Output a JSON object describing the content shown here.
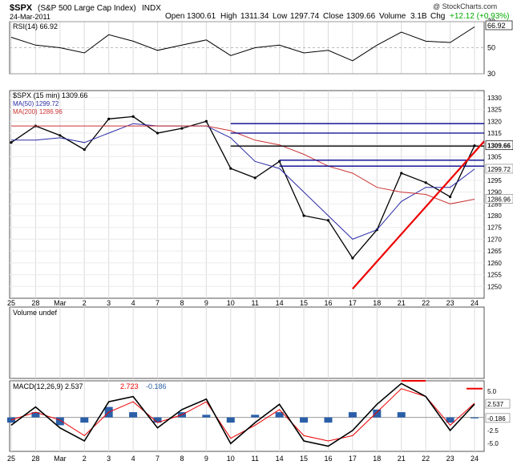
{
  "header": {
    "symbol": "$SPX",
    "name": "(S&P 500 Large Cap Index)",
    "exchange": "INDX",
    "date": "24-Mar-2011",
    "watermark": "@ StockCharts.com",
    "stats": [
      {
        "label": "Open",
        "value": "1300.61"
      },
      {
        "label": "High",
        "value": "1311.34"
      },
      {
        "label": "Low",
        "value": "1297.74"
      },
      {
        "label": "Close",
        "value": "1309.66"
      },
      {
        "label": "Volume",
        "value": "3.1B"
      },
      {
        "label": "Chg",
        "value": "+12.12 (+0.93%)"
      }
    ],
    "chg_color": "#00aa00"
  },
  "x_ticks": [
    "25",
    "28",
    "Mar",
    "2",
    "3",
    "4",
    "7",
    "8",
    "9",
    "10",
    "11",
    "14",
    "15",
    "16",
    "17",
    "18",
    "21",
    "22",
    "23",
    "24"
  ],
  "chart_data": [
    {
      "type": "line",
      "panel": "rsi",
      "legend": "RSI(14) 66.92",
      "current_label": "66.92",
      "ylim": [
        30,
        70
      ],
      "y_ticks": [
        70,
        50,
        30
      ],
      "reference_lines": [
        70,
        30
      ],
      "x": [
        "25",
        "28",
        "Mar",
        "2",
        "3",
        "4",
        "7",
        "8",
        "9",
        "10",
        "11",
        "14",
        "15",
        "16",
        "17",
        "18",
        "21",
        "22",
        "23",
        "24"
      ],
      "series": [
        {
          "values": [
            58,
            52,
            50,
            46,
            60,
            55,
            48,
            52,
            56,
            44,
            50,
            52,
            46,
            48,
            40,
            52,
            62,
            55,
            54,
            66
          ]
        }
      ]
    },
    {
      "type": "line",
      "panel": "price",
      "legend": [
        "$SPX (15 min) 1309.66",
        "MA(50) 1299.72",
        "MA(200) 1286.96"
      ],
      "ylim": [
        1245,
        1333
      ],
      "y_ticks": [
        1250,
        1255,
        1260,
        1265,
        1270,
        1275,
        1280,
        1285,
        1290,
        1295,
        1300,
        1305,
        1310,
        1315,
        1320,
        1325,
        1330
      ],
      "right_labels": [
        {
          "text": "1309.66",
          "value": 1309.66
        },
        {
          "text": "1299.72",
          "value": 1299.72
        },
        {
          "text": "1286.96",
          "value": 1286.96
        }
      ],
      "x": [
        "25",
        "28",
        "Mar",
        "2",
        "3",
        "4",
        "7",
        "8",
        "9",
        "10",
        "11",
        "14",
        "15",
        "16",
        "17",
        "18",
        "21",
        "22",
        "23",
        "24"
      ],
      "series": [
        {
          "name": "$SPX (15 min)",
          "color": "#000000",
          "values": [
            1311,
            1318,
            1314,
            1308,
            1321,
            1322,
            1315,
            1317,
            1320,
            1300,
            1296,
            1303,
            1280,
            1278,
            1262,
            1274,
            1298,
            1294,
            1288,
            1309.66
          ]
        },
        {
          "name": "MA(50)",
          "color": "#2b2ba6",
          "values": [
            1312,
            1312,
            1313,
            1311,
            1315,
            1319,
            1318,
            1318,
            1318,
            1313,
            1303,
            1300,
            1290,
            1280,
            1270,
            1274,
            1286,
            1292,
            1292,
            1299.72
          ]
        },
        {
          "name": "MA(200)",
          "color": "#cc3333",
          "values": [
            1318,
            1318,
            1318,
            1318,
            1318,
            1318,
            1318,
            1318,
            1318,
            1316,
            1312,
            1310,
            1306,
            1301,
            1298,
            1292,
            1290,
            1289,
            1285,
            1286.96
          ]
        }
      ],
      "annotations": [
        {
          "kind": "horizontal_line",
          "value": 1319,
          "color": "#00008b"
        },
        {
          "kind": "horizontal_line",
          "value": 1315,
          "color": "#00008b"
        },
        {
          "kind": "horizontal_line",
          "value": 1309.5,
          "color": "#000000"
        },
        {
          "kind": "horizontal_line",
          "value": 1303.5,
          "color": "#00008b"
        },
        {
          "kind": "horizontal_line",
          "value": 1301,
          "color": "#00008b"
        },
        {
          "kind": "trend_line",
          "from": {
            "x": "17",
            "y": 1249
          },
          "to": {
            "x": "24",
            "y": 1308
          },
          "color": "#ee0000"
        }
      ]
    },
    {
      "type": "bar",
      "panel": "volume",
      "legend": "Volume undef",
      "values": []
    },
    {
      "type": "line",
      "panel": "macd",
      "legend": [
        "MACD(12,26,9) 2.537",
        "2.723",
        "-0.186"
      ],
      "ylim": [
        -6.5,
        7
      ],
      "y_ticks": [
        5.0,
        2.5,
        0.0,
        -2.5,
        -5.0
      ],
      "right_labels": [
        {
          "text": "2.537",
          "value": 2.537
        },
        {
          "text": "-0.186",
          "value": -0.186
        }
      ],
      "x": [
        "25",
        "28",
        "Mar",
        "2",
        "3",
        "4",
        "7",
        "8",
        "9",
        "10",
        "11",
        "14",
        "15",
        "16",
        "17",
        "18",
        "21",
        "22",
        "23",
        "24"
      ],
      "series": [
        {
          "name": "MACD(12,26,9)",
          "color": "#000000",
          "values": [
            -1.5,
            2,
            -2,
            -4.5,
            3,
            4,
            -2,
            1.5,
            3.5,
            -5,
            -1,
            2.5,
            -4.5,
            -5.5,
            -2.5,
            2.5,
            6.5,
            4,
            -2.5,
            2.537
          ]
        },
        {
          "name": "signal",
          "color": "#ee0000",
          "values": [
            -0.5,
            1,
            -0.5,
            -3.5,
            1,
            3,
            -1,
            0.5,
            3,
            -4,
            -1.5,
            1.5,
            -3.5,
            -4.5,
            -3.5,
            1,
            5.5,
            4,
            -1.5,
            2.723
          ]
        },
        {
          "name": "histogram",
          "color": "#2a5fa8",
          "type": "bar",
          "values": [
            -1,
            1,
            -1.5,
            -1,
            2,
            1,
            -1,
            1,
            0.5,
            -1,
            0.5,
            1,
            -1,
            -1,
            1,
            1.5,
            1,
            0,
            -1,
            -0.186
          ]
        }
      ],
      "annotations": [
        {
          "kind": "segment",
          "from": {
            "x": "21",
            "y": 7
          },
          "to": {
            "x": "22",
            "y": 7
          },
          "color": "#ee0000"
        },
        {
          "kind": "segment",
          "from": {
            "x": "24",
            "y": 5.5
          },
          "to": {
            "x": "24",
            "y": 5.5
          },
          "color": "#ee0000"
        }
      ]
    }
  ]
}
